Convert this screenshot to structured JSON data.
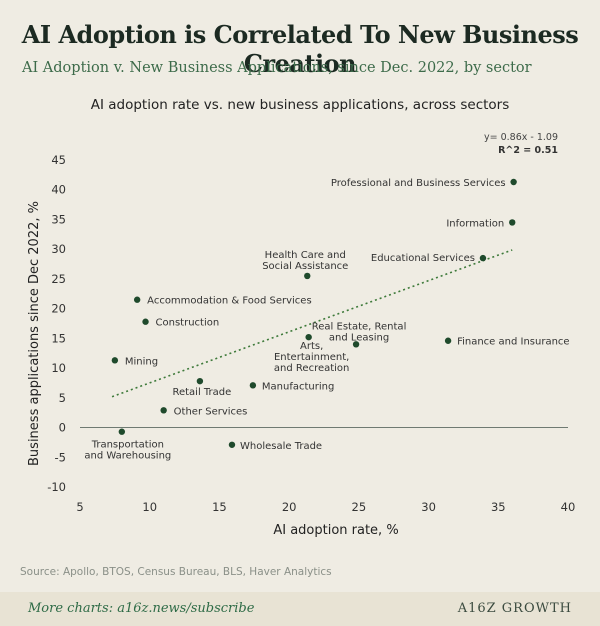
{
  "header": {
    "title": "AI Adoption is Correlated To New Business Creation",
    "subtitle": "AI Adoption v. New Business Applications, since Dec. 2022, by sector"
  },
  "chart_data": {
    "type": "scatter",
    "title": "AI adoption rate vs. new business applications, across sectors",
    "xlabel": "AI adoption rate, %",
    "ylabel": "Business applications since Dec 2022, %",
    "xlim": [
      5,
      40
    ],
    "ylim": [
      -10,
      45
    ],
    "xticks": [
      "5",
      "10",
      "15",
      "20",
      "25",
      "30",
      "35",
      "40"
    ],
    "yticks": [
      "45",
      "40",
      "35",
      "30",
      "25",
      "20",
      "15",
      "10",
      "5",
      "0",
      "-5",
      "-10"
    ],
    "grid": false,
    "trendline": {
      "equation": "y= 0.86x - 1.09",
      "r2": "R^2 = 0.51",
      "x_range": [
        7.3,
        36
      ]
    },
    "points": [
      {
        "label": "Professional and Business Services",
        "x": 36.1,
        "y": 41.3
      },
      {
        "label": "Information",
        "x": 36.0,
        "y": 34.5
      },
      {
        "label": "Educational Services",
        "x": 33.9,
        "y": 28.5
      },
      {
        "label": "Health Care and Social Assistance",
        "x": 21.3,
        "y": 25.5
      },
      {
        "label": "Accommodation & Food Services",
        "x": 9.1,
        "y": 21.5
      },
      {
        "label": "Construction",
        "x": 9.7,
        "y": 17.8
      },
      {
        "label": "Mining",
        "x": 7.5,
        "y": 11.3
      },
      {
        "label": "Real Estate, Rental and Leasing",
        "x": 24.8,
        "y": 14.0
      },
      {
        "label": "Arts, Entertainment, and Recreation",
        "x": 21.4,
        "y": 15.2
      },
      {
        "label": "Finance and Insurance",
        "x": 31.4,
        "y": 14.6
      },
      {
        "label": "Retail Trade",
        "x": 13.6,
        "y": 7.8
      },
      {
        "label": "Manufacturing",
        "x": 17.4,
        "y": 7.1
      },
      {
        "label": "Other Services",
        "x": 11.0,
        "y": 2.9
      },
      {
        "label": "Transportation and Warehousing",
        "x": 8.0,
        "y": -0.7
      },
      {
        "label": "Wholesale Trade",
        "x": 15.9,
        "y": -2.9
      }
    ]
  },
  "footer": {
    "source": "Source: Apollo, BTOS, Census Bureau, BLS, Haver Analytics",
    "more": "More charts: a16z.news/subscribe",
    "brand": "A16Z GROWTH"
  },
  "colors": {
    "point": "#1f4a2c",
    "trendline": "#3e7a3a",
    "zero_line": "#6f7a72"
  }
}
